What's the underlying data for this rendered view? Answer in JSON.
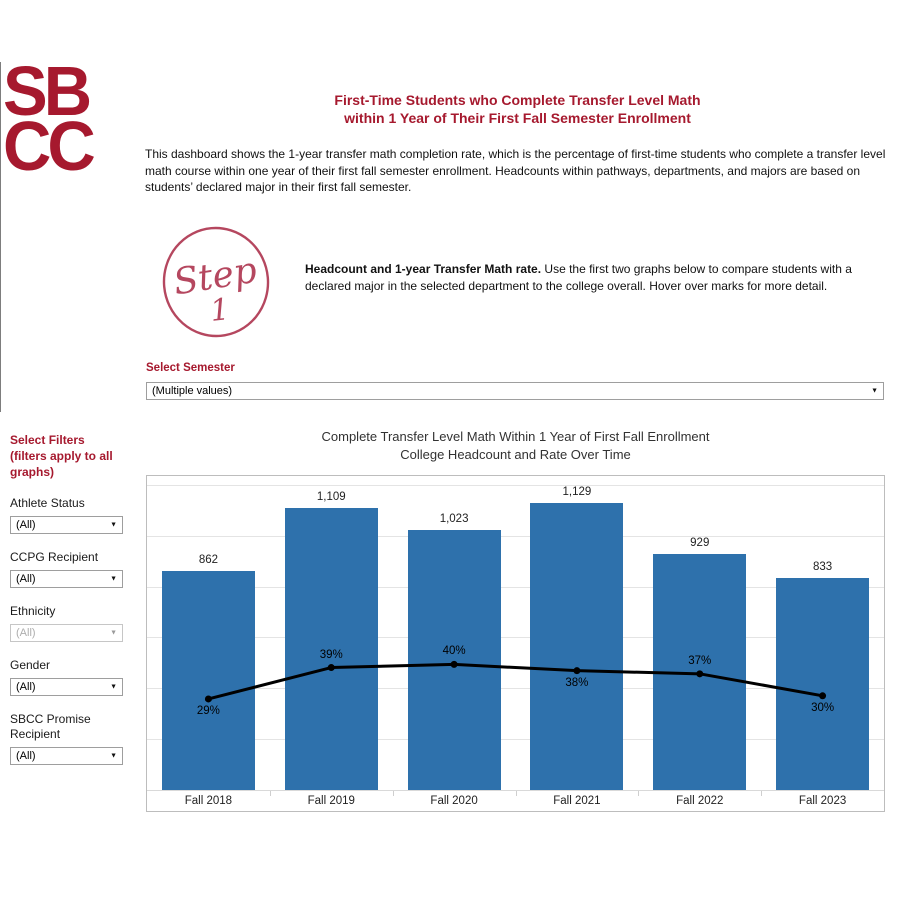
{
  "colors": {
    "accent": "#A6192E",
    "stamp": "#b5475f",
    "bar": "#2e71ac",
    "line": "#000000"
  },
  "logo": {
    "line1": "SB",
    "line2": "CC"
  },
  "header": {
    "title_line1": "First-Time Students who Complete Transfer Level Math",
    "title_line2": "within 1 Year of Their First Fall Semester Enrollment",
    "description": "This dashboard shows the 1-year transfer math completion rate, which is the percentage of first-time students who complete a transfer level math course within one year of their first fall semester enrollment. Headcounts within pathways, departments, and majors are based on students’ declared major in their first fall semester."
  },
  "step": {
    "stamp_word": "Step",
    "stamp_number": "1",
    "bold_text": "Headcount and 1-year Transfer Math rate.",
    "text": " Use the first two graphs below to compare students with a declared major in the selected department to the college overall. Hover over marks for more detail."
  },
  "semester_filter": {
    "label": "Select Semester",
    "value": "(Multiple values)"
  },
  "sidebar": {
    "title_line1": "Select Filters",
    "title_line2": "(filters apply to all graphs)",
    "filters": [
      {
        "label": "Athlete Status",
        "value": "(All)",
        "disabled": false
      },
      {
        "label": "CCPG Recipient",
        "value": "(All)",
        "disabled": false
      },
      {
        "label": "Ethnicity",
        "value": "(All)",
        "disabled": true
      },
      {
        "label": "Gender",
        "value": "(All)",
        "disabled": false
      },
      {
        "label": "SBCC Promise Recipient",
        "value": "(All)",
        "disabled": false
      }
    ]
  },
  "chart_data": {
    "type": "bar",
    "title_line1": "Complete Transfer Level Math Within 1 Year of First Fall Enrollment",
    "title_line2": "College Headcount and Rate Over Time",
    "categories": [
      "Fall 2018",
      "Fall 2019",
      "Fall 2020",
      "Fall 2021",
      "Fall 2022",
      "Fall 2023"
    ],
    "series": [
      {
        "name": "College Headcount",
        "type": "bar",
        "values": [
          862,
          1109,
          1023,
          1129,
          929,
          833
        ],
        "labels": [
          "862",
          "1,109",
          "1,023",
          "1,129",
          "929",
          "833"
        ],
        "color": "#2e71ac",
        "axis": {
          "min": 0,
          "max": 1235
        }
      },
      {
        "name": "1-Year Transfer Math Completion Rate",
        "type": "line",
        "values": [
          29,
          39,
          40,
          38,
          37,
          30
        ],
        "labels": [
          "29%",
          "39%",
          "40%",
          "38%",
          "37%",
          "30%"
        ],
        "label_positions": [
          "below",
          "above",
          "above",
          "below",
          "above",
          "below"
        ],
        "color": "#000000",
        "axis": {
          "min": 0,
          "max": 100,
          "unit": "%"
        }
      }
    ],
    "gridlines": {
      "values": [
        200,
        400,
        600,
        800,
        1000,
        1200
      ]
    },
    "legend": "none",
    "grid": "horizontal"
  }
}
